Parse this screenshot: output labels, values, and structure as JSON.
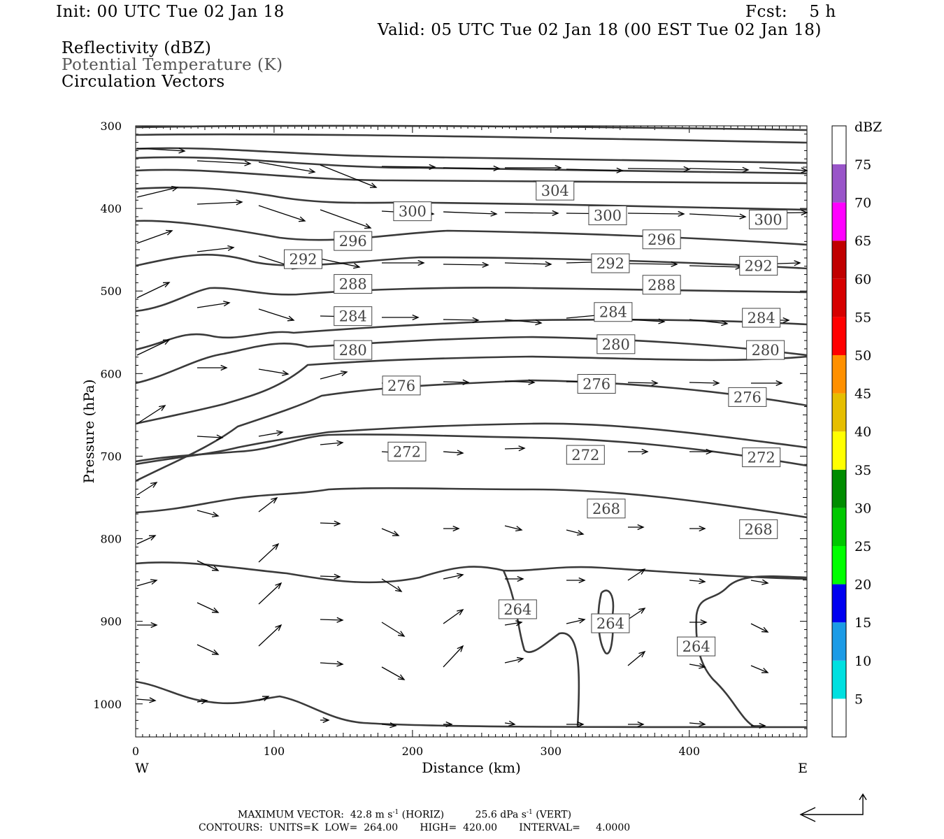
{
  "header": {
    "init": "Init: 00 UTC Tue 02 Jan 18",
    "fcst": "Fcst:    5 h",
    "valid": "Valid: 05 UTC Tue 02 Jan 18 (00 EST Tue 02 Jan 18)",
    "legend": [
      "Reflectivity (dBZ)",
      "Potential Temperature (K)",
      "Circulation Vectors"
    ]
  },
  "footer": {
    "max_vector_label": "MAXIMUM VECTOR:",
    "max_vector_horiz": "42.8 m s",
    "horiz_tag": "(HORIZ)",
    "max_vector_vert": "25.6 dPa s",
    "vert_tag": "(VERT)",
    "sup": "-1",
    "contours": "CONTOURS:  UNITS=K  LOW=  264.00       HIGH=  420.00       INTERVAL=     4.0000"
  },
  "colors": {
    "contour": "#3a3a3a",
    "vector": "#000000",
    "colorbar": [
      "#ffffff",
      "#00e0e0",
      "#1c9be6",
      "#0000f0",
      "#00ff00",
      "#00c800",
      "#008c00",
      "#ffff00",
      "#e6be00",
      "#ff9000",
      "#ff0000",
      "#d60000",
      "#c00000",
      "#ff00ff",
      "#9955c9",
      "#ffffff"
    ]
  },
  "chart_data": {
    "type": "cross-section",
    "xlabel": "Distance (km)",
    "ylabel": "Pressure (hPa)",
    "xlim": [
      0,
      485
    ],
    "ylim": [
      1040,
      300
    ],
    "x_ticks": [
      0,
      100,
      200,
      300,
      400
    ],
    "y_ticks": [
      300,
      400,
      500,
      600,
      700,
      800,
      900,
      1000
    ],
    "x_end_labels": {
      "left": "W",
      "right": "E"
    },
    "colorbar": {
      "title": "dBZ",
      "levels": [
        "5",
        "10",
        "15",
        "20",
        "25",
        "30",
        "35",
        "40",
        "45",
        "50",
        "55",
        "60",
        "65",
        "70",
        "75"
      ]
    },
    "theta_contours": [
      {
        "label": "264",
        "label_pos": [
          [
            276,
            885
          ],
          [
            343,
            902
          ],
          [
            405,
            930
          ]
        ]
      },
      {
        "label": "268",
        "label_pos": [
          [
            340,
            763
          ],
          [
            450,
            788
          ]
        ]
      },
      {
        "label": "272",
        "label_pos": [
          [
            196,
            694
          ],
          [
            325,
            698
          ],
          [
            452,
            701
          ]
        ]
      },
      {
        "label": "276",
        "label_pos": [
          [
            192,
            614
          ],
          [
            333,
            612
          ],
          [
            442,
            628
          ]
        ]
      },
      {
        "label": "280",
        "label_pos": [
          [
            157,
            571
          ],
          [
            347,
            564
          ],
          [
            455,
            571
          ]
        ]
      },
      {
        "label": "284",
        "label_pos": [
          [
            157,
            530
          ],
          [
            345,
            525
          ],
          [
            452,
            532
          ]
        ]
      },
      {
        "label": "288",
        "label_pos": [
          [
            157,
            491
          ],
          [
            380,
            492
          ]
        ]
      },
      {
        "label": "292",
        "label_pos": [
          [
            121,
            461
          ],
          [
            343,
            466
          ],
          [
            450,
            469
          ]
        ]
      },
      {
        "label": "296",
        "label_pos": [
          [
            157,
            439
          ],
          [
            380,
            437
          ]
        ]
      },
      {
        "label": "300",
        "label_pos": [
          [
            200,
            403
          ],
          [
            341,
            408
          ],
          [
            457,
            413
          ]
        ]
      },
      {
        "label": "304",
        "label_pos": [
          [
            303,
            378
          ]
        ]
      }
    ]
  }
}
